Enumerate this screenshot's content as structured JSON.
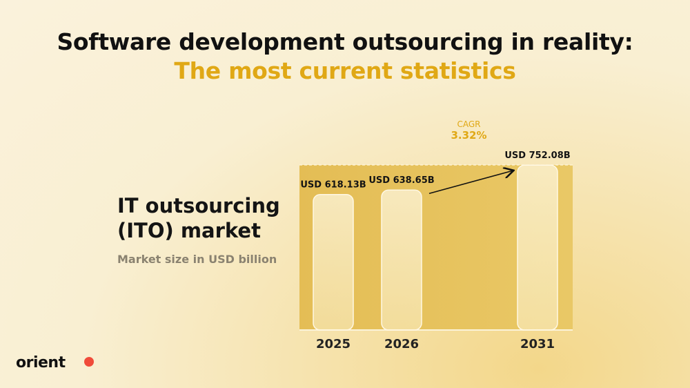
{
  "header": {
    "title_line1": "Software development outsourcing in reality:",
    "title_line2": "The most current statistics"
  },
  "side": {
    "title_line1": "IT outsourcing",
    "title_line2": "(ITO) market",
    "subtitle": "Market size in USD billion"
  },
  "logo": {
    "text": "orient"
  },
  "colors": {
    "accent": "#e0a815",
    "band": "#e6c25a",
    "logo_dot": "#f04b3a"
  },
  "chart_data": {
    "type": "bar",
    "categories": [
      "2025",
      "2026",
      "2031"
    ],
    "values": [
      618.13,
      638.65,
      752.08
    ],
    "data_labels": [
      "USD 618.13B",
      "USD 638.65B",
      "USD 752.08B"
    ],
    "ylabel": "Market size in USD billion",
    "ylim": [
      0,
      760
    ],
    "annotation": {
      "label": "CAGR",
      "value": "3.32%",
      "from": "2026",
      "to": "2031"
    },
    "grid": false
  }
}
